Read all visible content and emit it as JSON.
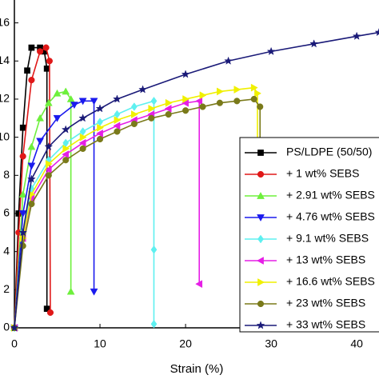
{
  "chart_data": {
    "type": "line",
    "x_label": "Strain (%)",
    "xlim": [
      0,
      42.6
    ],
    "xticks": [
      0,
      10,
      20,
      30,
      40
    ],
    "ylim": [
      0,
      17.2
    ],
    "yticks": [
      0,
      2,
      4,
      6,
      8,
      10,
      12,
      14,
      16
    ],
    "legend": "right",
    "series": [
      {
        "name": "PS/LDPE (50/50)",
        "color": "#000000",
        "marker": "square",
        "x": [
          0,
          0.5,
          1,
          1.5,
          2,
          3,
          3.5,
          3.8,
          3.8
        ],
        "values": [
          0,
          6,
          10.5,
          13.5,
          14.7,
          14.7,
          14.5,
          13.6,
          1.0
        ]
      },
      {
        "name": "+ 1 wt% SEBS",
        "color": "#e01818",
        "marker": "circle",
        "x": [
          0,
          0.5,
          1,
          2,
          3,
          3.7,
          4.1,
          4.2
        ],
        "values": [
          0,
          5,
          9,
          13,
          14.5,
          14.7,
          14,
          0.8
        ]
      },
      {
        "name": "+ 2.91 wt% SEBS",
        "color": "#6ef03c",
        "marker": "triangle-up",
        "x": [
          0,
          1,
          2,
          3,
          4,
          5,
          6,
          6.6,
          6.6
        ],
        "values": [
          0,
          7,
          9.5,
          11,
          11.8,
          12.3,
          12.4,
          12,
          1.9
        ]
      },
      {
        "name": "+ 4.76 wt% SEBS",
        "color": "#1a1aee",
        "marker": "triangle-down",
        "x": [
          0,
          1,
          2,
          3,
          5,
          7,
          8,
          9.3,
          9.3
        ],
        "values": [
          0,
          6,
          8.5,
          9.8,
          11,
          11.7,
          11.9,
          11.9,
          1.9
        ]
      },
      {
        "name": "+ 9.1 wt% SEBS",
        "color": "#5ef0f0",
        "marker": "diamond",
        "x": [
          0,
          1,
          2,
          4,
          6,
          8,
          10,
          12,
          14,
          16.3,
          16.3,
          16.3
        ],
        "values": [
          0,
          5,
          7.3,
          8.8,
          9.7,
          10.3,
          10.8,
          11.2,
          11.6,
          11.9,
          4.1,
          0.2
        ]
      },
      {
        "name": "+ 13 wt% SEBS",
        "color": "#e61ee6",
        "marker": "triangle-left",
        "x": [
          0,
          1,
          2,
          4,
          6,
          8,
          10,
          12,
          14,
          16,
          18,
          20,
          21.6,
          21.6
        ],
        "values": [
          0,
          4.7,
          6.8,
          8.3,
          9.1,
          9.7,
          10.2,
          10.6,
          10.9,
          11.2,
          11.5,
          11.8,
          11.9,
          2.3
        ]
      },
      {
        "name": "+ 16.6 wt% SEBS",
        "color": "#f0f000",
        "marker": "triangle-right",
        "x": [
          0,
          1,
          2,
          4,
          6,
          8,
          10,
          12,
          14,
          16,
          18,
          20,
          22,
          24,
          26,
          28,
          28.4,
          28.4
        ],
        "values": [
          0,
          4.7,
          7,
          8.6,
          9.4,
          10,
          10.5,
          10.9,
          11.2,
          11.5,
          11.8,
          12,
          12.2,
          12.4,
          12.5,
          12.6,
          12.3,
          0.2
        ]
      },
      {
        "name": "+ 23 wt% SEBS",
        "color": "#7a7a1a",
        "marker": "circle",
        "x": [
          0,
          1,
          2,
          4,
          6,
          8,
          10,
          12,
          14,
          16,
          18,
          20,
          22,
          24,
          26,
          28,
          28.7,
          28.7
        ],
        "values": [
          0,
          4.3,
          6.5,
          8,
          8.8,
          9.4,
          9.9,
          10.3,
          10.7,
          11,
          11.2,
          11.4,
          11.6,
          11.8,
          11.9,
          12,
          11.6,
          0
        ]
      },
      {
        "name": "+ 33 wt% SEBS",
        "color": "#1a1a78",
        "marker": "star",
        "x": [
          0,
          1,
          2,
          4,
          6,
          8,
          10,
          12,
          15,
          20,
          25,
          30,
          35,
          40,
          42.6
        ],
        "values": [
          0,
          5,
          7.8,
          9.5,
          10.4,
          11,
          11.5,
          12,
          12.5,
          13.3,
          14,
          14.5,
          14.9,
          15.3,
          15.5
        ]
      }
    ]
  }
}
